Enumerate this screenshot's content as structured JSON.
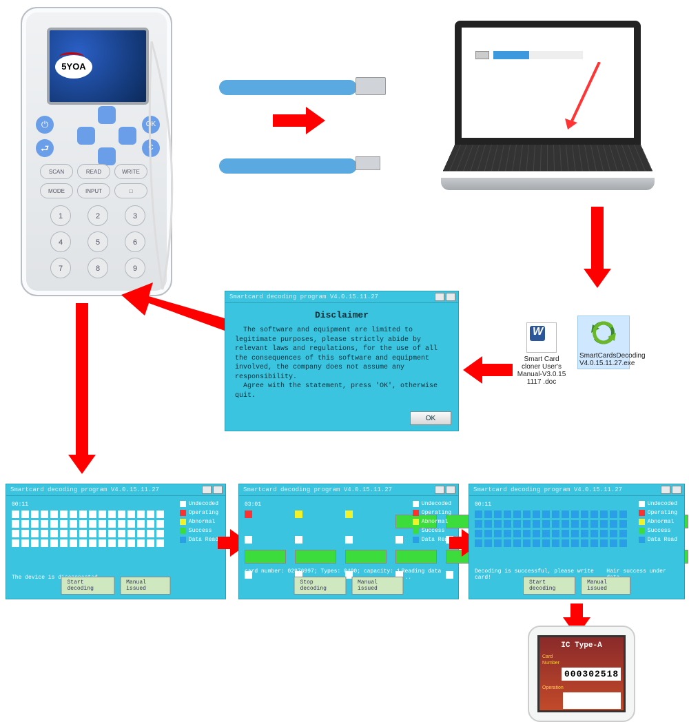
{
  "type": "infographic",
  "colors": {
    "arrow": "#ff0000",
    "window_bg": "#3bc4e0",
    "cable": "#5aa9e0",
    "button_blue": "#6a9ee8",
    "progress_fill": "#3d99dd"
  },
  "device": {
    "brand": "5YOA",
    "side_buttons": {
      "power": "⏻",
      "ok": "OK",
      "back": "⮐",
      "c": "C"
    },
    "fn_buttons": [
      "SCAN",
      "READ",
      "WRITE",
      "MODE",
      "INPUT",
      "□"
    ],
    "num_buttons": [
      "1",
      "2",
      "3",
      "4",
      "5",
      "6",
      "7",
      "8",
      "9"
    ]
  },
  "laptop": {
    "progress_pct": 40
  },
  "disclaimer": {
    "title": "Smartcard decoding program V4.0.15.11.27",
    "heading": "Disclaimer",
    "body": "  The software and equipment are limited to legitimate purposes, please strictly abide by relevant laws and regulations, for the use of all the consequences of this software and equipment involved, the company does not assume any  responsibility.\n  Agree with the statement, press 'OK', otherwise quit.",
    "ok": "OK"
  },
  "files": {
    "doc": "Smart Card cloner User's Manual-V3.0.15 1117 .doc",
    "exe": "SmartCardsDecoding V4.0.15.11.27.exe"
  },
  "legend": {
    "undecoded": {
      "label": "Undecoded",
      "color": "#ffffff"
    },
    "operating": {
      "label": "Operating",
      "color": "#ff3030"
    },
    "abnormal": {
      "label": "Abnormal",
      "color": "#f2f22a"
    },
    "success": {
      "label": "Success",
      "color": "#3ddc3d"
    },
    "dataread": {
      "label": "Data Read",
      "color": "#2a9fe8"
    }
  },
  "decoder_windows": {
    "title": "Smartcard decoding program V4.0.15.11.27",
    "btn_start": "Start decoding",
    "btn_stop": "Stop decoding",
    "btn_manual": "Manual issued",
    "s1": {
      "timer": "00:11",
      "status_left": "The device is disconnected",
      "status_right": "",
      "cells_row0": "................"
    },
    "s2": {
      "timer": "03:01",
      "status_left": "card number: 02976997; Types: 0400; capacity: 1 K",
      "status_right": "Reading data ...",
      "cells_row0": "opababokokokokokokokokabababokab",
      "cells_row1": "................",
      "cells_row2": "okokokokokokokokokokokokokokokok",
      "cells_row3": "................"
    },
    "s3": {
      "timer": "00:11",
      "status_left": "Decoding is successful, please write card!",
      "status_right": "Hair success under data",
      "cells_all_class": "dr"
    }
  },
  "result": {
    "title": "IC Type-A",
    "label1": "Card Number",
    "value": "000302518",
    "label2": "Operation"
  }
}
